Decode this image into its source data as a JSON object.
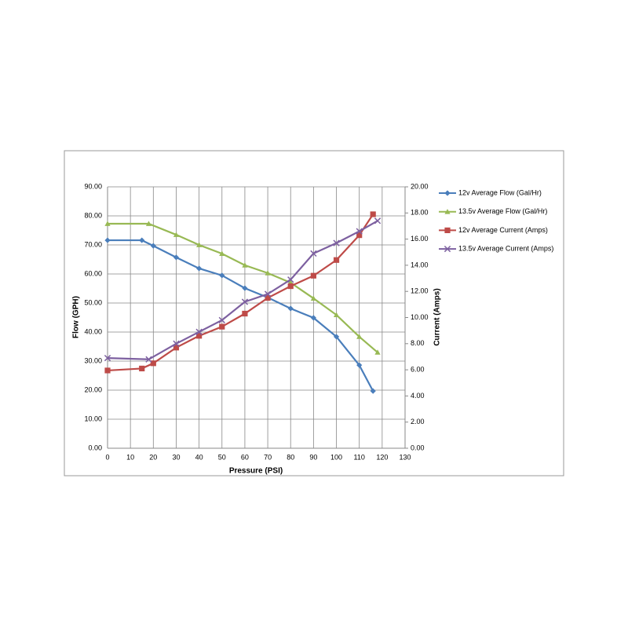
{
  "chart_data": {
    "type": "line",
    "x_label": "Pressure (PSI)",
    "y_label": "Flow (GPH)",
    "y2_label": "Current (Amps)",
    "xlim": [
      0,
      130
    ],
    "xticks": [
      0,
      10,
      20,
      30,
      40,
      50,
      60,
      70,
      80,
      90,
      100,
      110,
      120,
      130
    ],
    "ylim": [
      0,
      90
    ],
    "yticks": [
      {
        "value": 0,
        "label": "0.00"
      },
      {
        "value": 10,
        "label": "10.00"
      },
      {
        "value": 20,
        "label": "20.00"
      },
      {
        "value": 30,
        "label": "30.00"
      },
      {
        "value": 40,
        "label": "40.00"
      },
      {
        "value": 50,
        "label": "50.00"
      },
      {
        "value": 60,
        "label": "60.00"
      },
      {
        "value": 70,
        "label": "70.00"
      },
      {
        "value": 80,
        "label": "80.00"
      },
      {
        "value": 90,
        "label": "90.00"
      }
    ],
    "y2lim": [
      0,
      20
    ],
    "y2ticks": [
      {
        "value": 0,
        "label": "0.00"
      },
      {
        "value": 2,
        "label": "2.00"
      },
      {
        "value": 4,
        "label": "4.00"
      },
      {
        "value": 6,
        "label": "6.00"
      },
      {
        "value": 8,
        "label": "8.00"
      },
      {
        "value": 10,
        "label": "10.00"
      },
      {
        "value": 12,
        "label": "12.00"
      },
      {
        "value": 14,
        "label": "14.00"
      },
      {
        "value": 16,
        "label": "16.00"
      },
      {
        "value": 18,
        "label": "18.00"
      },
      {
        "value": 20,
        "label": "20.00"
      }
    ],
    "grid": true,
    "legend": "right",
    "series": [
      {
        "name": "12v Average Flow (Gal/Hr)",
        "color": "#4a7ebb",
        "marker": "diamond",
        "x": [
          0,
          15,
          20,
          30,
          40,
          50,
          60,
          70,
          80,
          90,
          100,
          110,
          116
        ],
        "values": [
          71.6,
          71.6,
          69.7,
          65.7,
          61.9,
          59.5,
          55.1,
          51.9,
          48.1,
          44.9,
          38.4,
          28.6,
          19.7
        ]
      },
      {
        "name": "13.5v Average Flow (Gal/Hr)",
        "color": "#98b954",
        "marker": "triangle",
        "x": [
          0,
          18,
          30,
          40,
          50,
          60,
          70,
          80,
          90,
          100,
          110,
          118
        ],
        "values": [
          77.3,
          77.3,
          73.5,
          70,
          67,
          63,
          60.3,
          57,
          51.6,
          45.9,
          38.4,
          33
        ]
      },
      {
        "name": "12v Average Current (Amps)",
        "color": "#be4b48",
        "marker": "square",
        "axis": "y2",
        "x": [
          0,
          15,
          20,
          30,
          40,
          50,
          60,
          70,
          80,
          90,
          100,
          110,
          116
        ],
        "values": [
          5.95,
          6.1,
          6.5,
          7.7,
          8.6,
          9.3,
          10.3,
          11.5,
          12.4,
          13.2,
          14.4,
          16.3,
          17.9
        ]
      },
      {
        "name": "13.5v Average Current (Amps)",
        "color": "#7d60a0",
        "marker": "x",
        "axis": "y2",
        "x": [
          0,
          18,
          30,
          40,
          50,
          60,
          70,
          80,
          90,
          100,
          110,
          118
        ],
        "values": [
          6.9,
          6.8,
          8,
          8.9,
          9.8,
          11.2,
          11.8,
          12.9,
          14.9,
          15.7,
          16.6,
          17.4
        ]
      }
    ]
  }
}
